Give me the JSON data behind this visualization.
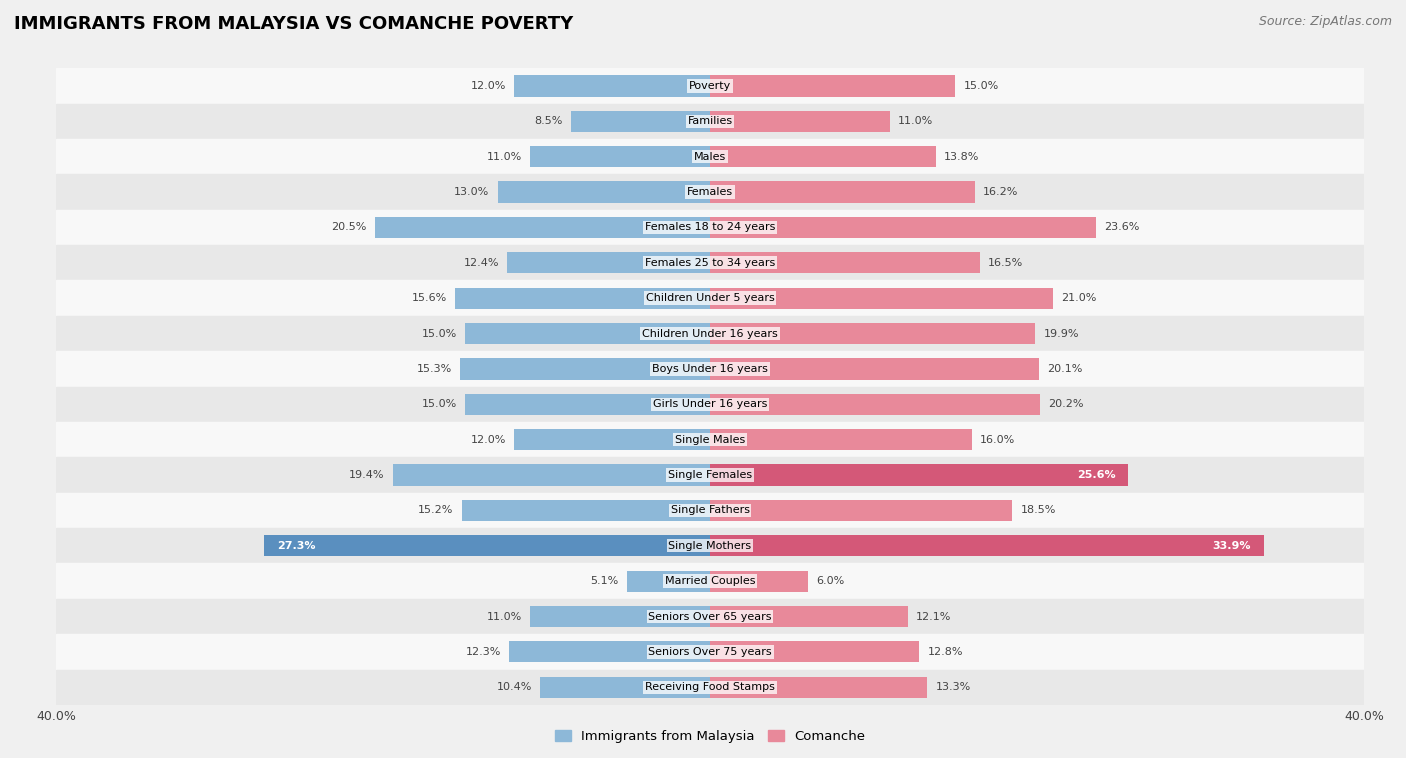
{
  "title": "IMMIGRANTS FROM MALAYSIA VS COMANCHE POVERTY",
  "source": "Source: ZipAtlas.com",
  "categories": [
    "Poverty",
    "Families",
    "Males",
    "Females",
    "Females 18 to 24 years",
    "Females 25 to 34 years",
    "Children Under 5 years",
    "Children Under 16 years",
    "Boys Under 16 years",
    "Girls Under 16 years",
    "Single Males",
    "Single Females",
    "Single Fathers",
    "Single Mothers",
    "Married Couples",
    "Seniors Over 65 years",
    "Seniors Over 75 years",
    "Receiving Food Stamps"
  ],
  "malaysia_values": [
    12.0,
    8.5,
    11.0,
    13.0,
    20.5,
    12.4,
    15.6,
    15.0,
    15.3,
    15.0,
    12.0,
    19.4,
    15.2,
    27.3,
    5.1,
    11.0,
    12.3,
    10.4
  ],
  "comanche_values": [
    15.0,
    11.0,
    13.8,
    16.2,
    23.6,
    16.5,
    21.0,
    19.9,
    20.1,
    20.2,
    16.0,
    25.6,
    18.5,
    33.9,
    6.0,
    12.1,
    12.8,
    13.3
  ],
  "malaysia_color": "#8db8d8",
  "comanche_color": "#e8899a",
  "highlight_malaysia_indices": [
    13
  ],
  "highlight_comanche_indices": [
    11,
    13
  ],
  "highlight_malaysia_color": "#5a8fbf",
  "highlight_comanche_color": "#d45878",
  "background_color": "#f0f0f0",
  "row_bg_even": "#f8f8f8",
  "row_bg_odd": "#e8e8e8",
  "xlim": 40.0,
  "bar_height": 0.6,
  "label_fontsize": 8.0,
  "cat_fontsize": 8.0,
  "legend_label_malaysia": "Immigrants from Malaysia",
  "legend_label_comanche": "Comanche",
  "title_fontsize": 13,
  "source_fontsize": 9
}
